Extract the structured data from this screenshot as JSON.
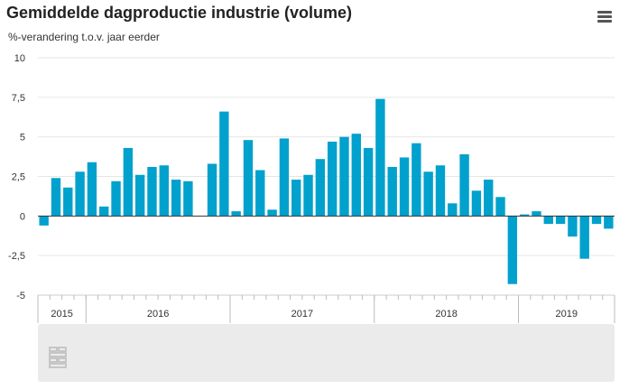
{
  "header": {
    "title": "Gemiddelde dagproductie industrie (volume)",
    "subtitle": "%-verandering t.o.v. jaar eerder",
    "menu_icon": "hamburger-menu-icon"
  },
  "navigator": {
    "logo_icon": "cbs-logo-icon"
  },
  "colors": {
    "bar": "#00a1cd",
    "grid": "#e6e6e6",
    "zero_line": "#333333",
    "navigator": "#ebebeb"
  },
  "chart_data": {
    "type": "bar",
    "title": "Gemiddelde dagproductie industrie (volume)",
    "subtitle": "%-verandering t.o.v. jaar eerder",
    "xlabel": "",
    "ylabel": "",
    "ylim": [
      -5,
      10
    ],
    "yticks": [
      10,
      7.5,
      5,
      2.5,
      0,
      -2.5,
      -5
    ],
    "ytick_labels": [
      "10",
      "7,5",
      "5",
      "2,5",
      "0",
      "-2,5",
      "-5"
    ],
    "grid": true,
    "legend": "none",
    "year_labels": [
      "2015",
      "2016",
      "2017",
      "2018",
      "2019"
    ],
    "year_spans": [
      {
        "label": "2015",
        "start_month": 0,
        "end_month": 4
      },
      {
        "label": "2016",
        "start_month": 4,
        "end_month": 16
      },
      {
        "label": "2017",
        "start_month": 16,
        "end_month": 28
      },
      {
        "label": "2018",
        "start_month": 28,
        "end_month": 40
      },
      {
        "label": "2019",
        "start_month": 40,
        "end_month": 48
      }
    ],
    "months": 48,
    "values": [
      -0.6,
      2.4,
      1.8,
      2.8,
      3.4,
      0.6,
      2.2,
      4.3,
      2.6,
      3.1,
      3.2,
      2.3,
      2.2,
      null,
      3.3,
      6.6,
      0.3,
      4.8,
      2.9,
      0.4,
      4.9,
      2.3,
      2.6,
      3.6,
      4.7,
      5.0,
      5.2,
      4.3,
      7.4,
      3.1,
      3.7,
      4.6,
      2.8,
      3.2,
      0.8,
      3.9,
      1.6,
      2.3,
      1.2,
      -4.3,
      0.1,
      0.3,
      -0.5,
      -0.5,
      -1.3,
      -2.7,
      -0.5,
      -0.8
    ]
  }
}
